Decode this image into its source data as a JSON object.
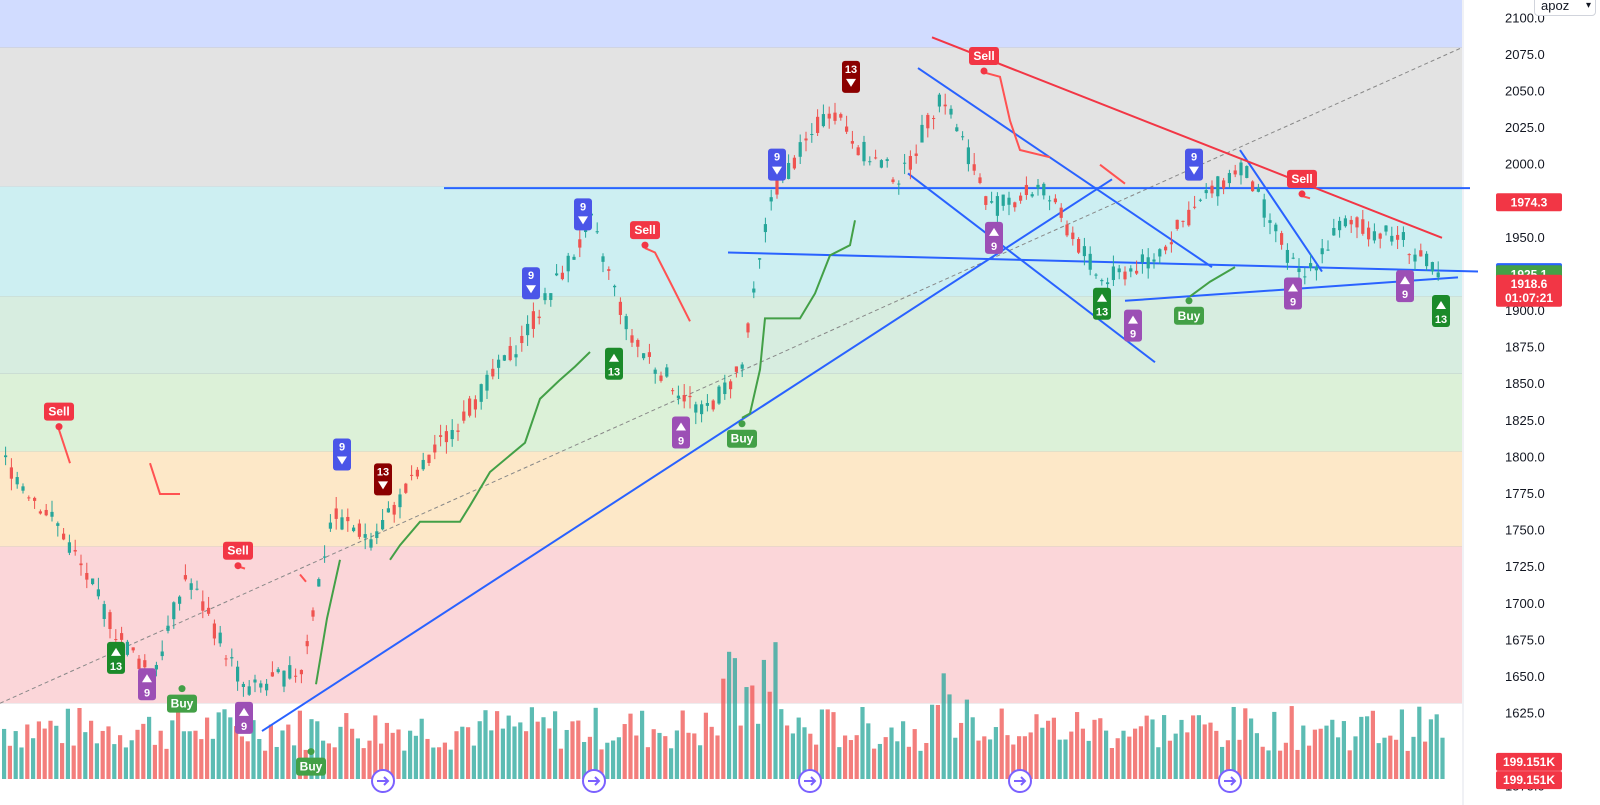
{
  "toolbar": {
    "symbol_select": "apoz"
  },
  "colors": {
    "up": "#26a69a",
    "down": "#ef5350",
    "trend": "#2962ff",
    "red_trend": "#f23645",
    "supertrend_up": "#43a047",
    "supertrend_down": "#ff5252"
  },
  "chart_data": {
    "type": "candlestick",
    "y_axis": {
      "min": 1562.5,
      "max": 2112.5,
      "ticks": [
        1575,
        1625,
        1650,
        1675,
        1700,
        1725,
        1750,
        1775,
        1800,
        1825,
        1850,
        1875,
        1900,
        1925,
        1950,
        2000,
        2025,
        2050,
        2075,
        2100
      ],
      "tick_labels": [
        "1575.0",
        "1625.0",
        "1650.0",
        "1675.0",
        "1700.0",
        "1725.0",
        "1750.0",
        "1775.0",
        "1800.0",
        "1825.0",
        "1850.0",
        "1875.0",
        "1900.0",
        "1925.0",
        "1950.0",
        "2000.0",
        "2025.0",
        "2050.0",
        "2075.0",
        "2100.0"
      ]
    },
    "price_badges": [
      {
        "value": 1974.3,
        "label": "1974.3",
        "color": "#f23645"
      },
      {
        "value": 1926.6,
        "label": "1926.6",
        "color": "#2962ff"
      },
      {
        "value": 1925.1,
        "label": "1925.1",
        "color": "#43a047"
      },
      {
        "value": 1918.6,
        "label": "1918.6",
        "sublabel": "01:07:21",
        "color": "#f23645"
      },
      {
        "value": 1592.0,
        "label": "199.151K",
        "color": "#f23645"
      },
      {
        "value": 1579.5,
        "label": "199.151K",
        "color": "#f23645"
      }
    ],
    "fib_levels": [
      {
        "from": 2080,
        "to": 2112.5,
        "color": "#d1dcff"
      },
      {
        "from": 1985,
        "to": 2080,
        "color": "#e3e3e3"
      },
      {
        "from": 1910,
        "to": 1985,
        "color": "#cdeff2"
      },
      {
        "from": 1857,
        "to": 1910,
        "color": "#d7ede0"
      },
      {
        "from": 1804,
        "to": 1857,
        "color": "#dcf1d8"
      },
      {
        "from": 1739,
        "to": 1804,
        "color": "#fde8c8"
      },
      {
        "from": 1632,
        "to": 1739,
        "color": "#fbd6d9"
      }
    ],
    "trend_lines": [
      {
        "x1": 0.0,
        "y1": 1632,
        "x2": 1462,
        "y2": 2080,
        "style": "dashed"
      },
      {
        "x1": 262,
        "y1": 1613,
        "x2": 1112,
        "y2": 1990,
        "color": "trend"
      },
      {
        "x1": 444,
        "y1": 1984,
        "x2": 1470,
        "y2": 1984,
        "color": "trend"
      },
      {
        "x1": 728,
        "y1": 1940,
        "x2": 1478,
        "y2": 1927,
        "color": "trend"
      },
      {
        "x1": 1125,
        "y1": 1907,
        "x2": 1458,
        "y2": 1923,
        "color": "trend"
      },
      {
        "x1": 918,
        "y1": 2066,
        "x2": 1212,
        "y2": 1930,
        "color": "trend"
      },
      {
        "x1": 908,
        "y1": 1994,
        "x2": 1155,
        "y2": 1865,
        "color": "trend"
      },
      {
        "x1": 1240,
        "y1": 2010,
        "x2": 1322,
        "y2": 1927,
        "color": "trend"
      },
      {
        "x1": 932,
        "y1": 2087,
        "x2": 1442,
        "y2": 1950,
        "color": "red_trend"
      }
    ],
    "supertrend_up": [
      [
        0,
        1751
      ],
      [
        58,
        1751
      ],
      [
        175,
        1642
      ],
      [
        236,
        1642
      ],
      [
        316,
        1645
      ],
      [
        327,
        1690
      ],
      [
        340,
        1730
      ],
      [
        390,
        1730
      ],
      [
        400,
        1740
      ],
      [
        420,
        1756
      ],
      [
        460,
        1756
      ],
      [
        470,
        1767
      ],
      [
        490,
        1790
      ],
      [
        525,
        1810
      ],
      [
        540,
        1840
      ],
      [
        560,
        1853
      ],
      [
        575,
        1862
      ],
      [
        590,
        1872
      ],
      [
        640,
        1872
      ],
      [
        742,
        1827
      ],
      [
        750,
        1830
      ],
      [
        760,
        1860
      ],
      [
        765,
        1895
      ],
      [
        800,
        1895
      ],
      [
        815,
        1912
      ],
      [
        830,
        1938
      ],
      [
        850,
        1945
      ],
      [
        855,
        1962
      ],
      [
        984,
        1962
      ],
      [
        1190,
        1910
      ],
      [
        1210,
        1920
      ],
      [
        1235,
        1930
      ],
      [
        1295,
        1930
      ]
    ],
    "supertrend_down": [
      [
        58,
        1821
      ],
      [
        70,
        1796
      ],
      [
        150,
        1796
      ],
      [
        160,
        1775
      ],
      [
        180,
        1775
      ],
      [
        236,
        1726
      ],
      [
        245,
        1724
      ],
      [
        300,
        1720
      ],
      [
        306,
        1715
      ],
      [
        645,
        1943
      ],
      [
        655,
        1940
      ],
      [
        670,
        1920
      ],
      [
        690,
        1893
      ],
      [
        738,
        1893
      ],
      [
        984,
        2063
      ],
      [
        1000,
        2060
      ],
      [
        1010,
        2030
      ],
      [
        1020,
        2010
      ],
      [
        1050,
        2005
      ],
      [
        1100,
        2000
      ],
      [
        1125,
        1987
      ],
      [
        1185,
        1987
      ],
      [
        1300,
        1979
      ],
      [
        1310,
        1977
      ],
      [
        1440,
        1976
      ]
    ],
    "signals": [
      {
        "label": "Sell",
        "x": 59,
        "price": 1821,
        "type": "sell"
      },
      {
        "label": "Sell",
        "x": 238,
        "price": 1726,
        "type": "sell"
      },
      {
        "label": "Sell",
        "x": 645,
        "price": 1945,
        "type": "sell"
      },
      {
        "label": "Sell",
        "x": 984,
        "price": 2064,
        "type": "sell"
      },
      {
        "label": "Sell",
        "x": 1302,
        "price": 1980,
        "type": "sell"
      },
      {
        "label": "Buy",
        "x": 182,
        "price": 1642,
        "type": "buy"
      },
      {
        "label": "Buy",
        "x": 311,
        "price": 1599,
        "type": "buy"
      },
      {
        "label": "Buy",
        "x": 742,
        "price": 1823,
        "type": "buy"
      },
      {
        "label": "Buy",
        "x": 1189,
        "price": 1907,
        "type": "buy"
      }
    ],
    "td_markers": [
      {
        "label": "13",
        "x": 116,
        "price": 1663,
        "kind": "up13"
      },
      {
        "label": "9",
        "x": 147,
        "price": 1645,
        "kind": "up9"
      },
      {
        "label": "9",
        "x": 244,
        "price": 1622,
        "kind": "up9"
      },
      {
        "label": "9",
        "x": 342,
        "price": 1802,
        "kind": "down9"
      },
      {
        "label": "13",
        "x": 383,
        "price": 1785,
        "kind": "down13"
      },
      {
        "label": "9",
        "x": 531,
        "price": 1919,
        "kind": "down9"
      },
      {
        "label": "9",
        "x": 583,
        "price": 1966,
        "kind": "down9"
      },
      {
        "label": "13",
        "x": 614,
        "price": 1864,
        "kind": "up13"
      },
      {
        "label": "9",
        "x": 681,
        "price": 1817,
        "kind": "up9"
      },
      {
        "label": "9",
        "x": 777,
        "price": 2000,
        "kind": "down9"
      },
      {
        "label": "13",
        "x": 851,
        "price": 2060,
        "kind": "down13"
      },
      {
        "label": "9",
        "x": 994,
        "price": 1950,
        "kind": "up9"
      },
      {
        "label": "13",
        "x": 1102,
        "price": 1905,
        "kind": "up13"
      },
      {
        "label": "9",
        "x": 1133,
        "price": 1890,
        "kind": "up9"
      },
      {
        "label": "9",
        "x": 1194,
        "price": 2000,
        "kind": "down9"
      },
      {
        "label": "9",
        "x": 1293,
        "price": 1912,
        "kind": "up9"
      },
      {
        "label": "9",
        "x": 1405,
        "price": 1917,
        "kind": "up9"
      },
      {
        "label": "13",
        "x": 1441,
        "price": 1900,
        "kind": "up13"
      }
    ],
    "event_markers": [
      383,
      594,
      810,
      1020,
      1230
    ]
  }
}
